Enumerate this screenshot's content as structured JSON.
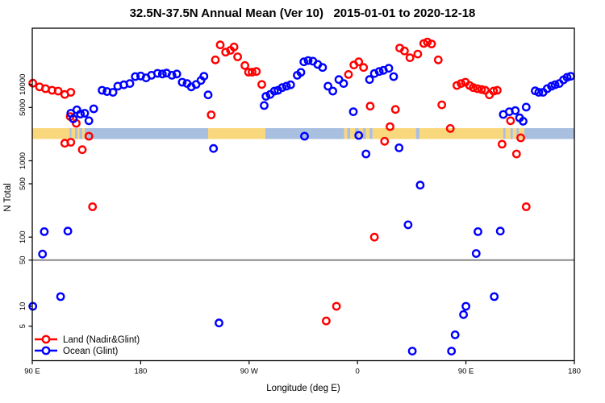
{
  "title": "32.5N-37.5N Annual Mean (Ver 10)   2015-01-01 to 2020-12-18",
  "axes": {
    "x": {
      "label": "Longitude (deg E)",
      "range": [
        90,
        540
      ],
      "ticks": [
        {
          "lon": 90,
          "label": "90 E"
        },
        {
          "lon": 180,
          "label": "180"
        },
        {
          "lon": 270,
          "label": "90 W"
        },
        {
          "lon": 360,
          "label": "0"
        },
        {
          "lon": 450,
          "label": "90 E"
        },
        {
          "lon": 540,
          "label": "180"
        }
      ]
    },
    "y": {
      "label": "N Total",
      "scale": "log-split",
      "split_value": 50,
      "ticks": [
        {
          "v": 10000,
          "label": "10000"
        },
        {
          "v": 5000,
          "label": "5000"
        },
        {
          "v": 1000,
          "label": "1000"
        },
        {
          "v": 500,
          "label": "500"
        },
        {
          "v": 100,
          "label": "100"
        },
        {
          "v": 50,
          "label": "50"
        },
        {
          "v": 10,
          "label": "10"
        },
        {
          "v": 5,
          "label": "5"
        }
      ]
    }
  },
  "colors": {
    "land": "#ff0000",
    "ocean": "#0000ff",
    "band_land": "#f9d77c",
    "band_ocean": "#a9bfe0",
    "split_line": "#7f7f7f",
    "frame": "#000000"
  },
  "legend": {
    "land_label": "Land (Nadir&Glint)",
    "ocean_label": "Ocean (Glint)"
  },
  "land_ocean_strip": {
    "description": "land/ocean map strip across the latitude band",
    "segments": [
      {
        "type": "land",
        "from": 90,
        "to": 121
      },
      {
        "type": "ocean",
        "from": 121,
        "to": 122.5
      },
      {
        "type": "land",
        "from": 122.5,
        "to": 125.5
      },
      {
        "type": "ocean",
        "from": 125.5,
        "to": 127.5
      },
      {
        "type": "land",
        "from": 127.5,
        "to": 129
      },
      {
        "type": "ocean",
        "from": 129,
        "to": 131.5
      },
      {
        "type": "land",
        "from": 131.5,
        "to": 133.5
      },
      {
        "type": "ocean",
        "from": 133.5,
        "to": 236
      },
      {
        "type": "land",
        "from": 236,
        "to": 283.5
      },
      {
        "type": "ocean",
        "from": 283.5,
        "to": 349
      },
      {
        "type": "land",
        "from": 349,
        "to": 351.5
      },
      {
        "type": "ocean",
        "from": 351.5,
        "to": 354
      },
      {
        "type": "land",
        "from": 354,
        "to": 358
      },
      {
        "type": "ocean",
        "from": 358,
        "to": 361
      },
      {
        "type": "land",
        "from": 361,
        "to": 364.5
      },
      {
        "type": "ocean",
        "from": 364.5,
        "to": 367
      },
      {
        "type": "land",
        "from": 367,
        "to": 370
      },
      {
        "type": "ocean",
        "from": 370,
        "to": 372.5
      },
      {
        "type": "land",
        "from": 372.5,
        "to": 408.5
      },
      {
        "type": "ocean",
        "from": 408.5,
        "to": 411.5
      },
      {
        "type": "land",
        "from": 411.5,
        "to": 481
      },
      {
        "type": "ocean",
        "from": 481,
        "to": 483
      },
      {
        "type": "land",
        "from": 483,
        "to": 487
      },
      {
        "type": "ocean",
        "from": 487,
        "to": 489
      },
      {
        "type": "land",
        "from": 489,
        "to": 492
      },
      {
        "type": "ocean",
        "from": 492,
        "to": 494
      },
      {
        "type": "land",
        "from": 494,
        "to": 498.5
      },
      {
        "type": "ocean",
        "from": 498.5,
        "to": 540
      }
    ]
  },
  "chart_data": {
    "type": "scatter",
    "title": "32.5N-37.5N Annual Mean (Ver 10)   2015-01-01 to 2020-12-18",
    "xlabel": "Longitude (deg E)",
    "ylabel": "N Total",
    "xlim": [
      90,
      540
    ],
    "x_note": "longitude in deg E, wrapping 90E->180->90W->0->90E->180",
    "y_note": "log scale, split axis at N=50",
    "grid": "single horizontal gray line at N=50",
    "legend_position": "bottom-left inside plot",
    "series": [
      {
        "name": "Land (Nadir&Glint)",
        "color": "#ff0000",
        "points": [
          [
            90.5,
            10400
          ],
          [
            96,
            9300
          ],
          [
            101,
            8800
          ],
          [
            106.5,
            8400
          ],
          [
            111.5,
            8200
          ],
          [
            117,
            7400
          ],
          [
            122,
            7900
          ],
          [
            121.5,
            3800
          ],
          [
            126.5,
            3100
          ],
          [
            117,
            1700
          ],
          [
            122,
            1750
          ],
          [
            131.5,
            1400
          ],
          [
            137,
            2100
          ],
          [
            140,
            250
          ],
          [
            238.5,
            4000
          ],
          [
            242,
            21000
          ],
          [
            246,
            33000
          ],
          [
            250.5,
            26500
          ],
          [
            254.5,
            28000
          ],
          [
            257.5,
            31000
          ],
          [
            260.5,
            23000
          ],
          [
            266.5,
            17700
          ],
          [
            269.5,
            14500
          ],
          [
            272.5,
            14500
          ],
          [
            276,
            14800
          ],
          [
            280.5,
            10000
          ],
          [
            352.5,
            13500
          ],
          [
            357,
            18000
          ],
          [
            361,
            19800
          ],
          [
            365,
            16700
          ],
          [
            370.5,
            5200
          ],
          [
            382.5,
            1800
          ],
          [
            387,
            2800
          ],
          [
            391.5,
            4700
          ],
          [
            374,
            100
          ],
          [
            342.5,
            10
          ],
          [
            334,
            6
          ],
          [
            395,
            30000
          ],
          [
            399,
            27500
          ],
          [
            403.5,
            22400
          ],
          [
            410,
            25000
          ],
          [
            415,
            34500
          ],
          [
            418,
            36000
          ],
          [
            421.5,
            34000
          ],
          [
            427,
            21000
          ],
          [
            430,
            5400
          ],
          [
            437,
            2650
          ],
          [
            442.5,
            9700
          ],
          [
            446,
            10300
          ],
          [
            449.5,
            10700
          ],
          [
            453,
            9700
          ],
          [
            456,
            9100
          ],
          [
            459.5,
            8800
          ],
          [
            463,
            8600
          ],
          [
            466,
            8400
          ],
          [
            469.5,
            7300
          ],
          [
            473,
            8200
          ],
          [
            476,
            8400
          ],
          [
            487,
            3350
          ],
          [
            480,
            1650
          ],
          [
            495.5,
            2000
          ],
          [
            492,
            1230
          ],
          [
            500,
            250
          ]
        ]
      },
      {
        "name": "Ocean (Glint)",
        "color": "#0000ff",
        "points": [
          [
            122,
            4200
          ],
          [
            124,
            3550
          ],
          [
            127,
            4650
          ],
          [
            130,
            4100
          ],
          [
            133.5,
            4200
          ],
          [
            137,
            3350
          ],
          [
            141,
            4800
          ],
          [
            148,
            8400
          ],
          [
            152,
            8100
          ],
          [
            157,
            7900
          ],
          [
            161,
            9500
          ],
          [
            166,
            9900
          ],
          [
            171,
            10300
          ],
          [
            175.5,
            12700
          ],
          [
            180,
            12900
          ],
          [
            184.5,
            12200
          ],
          [
            189,
            13200
          ],
          [
            194,
            14000
          ],
          [
            198,
            13700
          ],
          [
            201.5,
            14100
          ],
          [
            206,
            13200
          ],
          [
            210,
            13700
          ],
          [
            214.5,
            10700
          ],
          [
            218.5,
            10300
          ],
          [
            222,
            9300
          ],
          [
            226,
            10000
          ],
          [
            230,
            11300
          ],
          [
            232.5,
            12800
          ],
          [
            236,
            7300
          ],
          [
            282.5,
            5300
          ],
          [
            284,
            7000
          ],
          [
            287.5,
            7400
          ],
          [
            291,
            8200
          ],
          [
            294,
            8400
          ],
          [
            297.5,
            9100
          ],
          [
            301,
            9500
          ],
          [
            304.5,
            9900
          ],
          [
            310,
            13200
          ],
          [
            313,
            14400
          ],
          [
            315.5,
            19800
          ],
          [
            319,
            20600
          ],
          [
            323,
            20200
          ],
          [
            327,
            18300
          ],
          [
            331,
            16700
          ],
          [
            335.5,
            9500
          ],
          [
            339.5,
            8200
          ],
          [
            344.5,
            11600
          ],
          [
            348.5,
            10300
          ],
          [
            316,
            2100
          ],
          [
            356.5,
            4400
          ],
          [
            361,
            2150
          ],
          [
            367,
            1230
          ],
          [
            394.5,
            1480
          ],
          [
            412,
            480
          ],
          [
            402,
            145
          ],
          [
            405.5,
            2.1
          ],
          [
            370,
            11600
          ],
          [
            374,
            13900
          ],
          [
            378,
            14800
          ],
          [
            381.5,
            15300
          ],
          [
            386,
            16300
          ],
          [
            390,
            12700
          ],
          [
            481,
            4050
          ],
          [
            486,
            4400
          ],
          [
            491,
            4550
          ],
          [
            500,
            5050
          ],
          [
            494.5,
            3650
          ],
          [
            497.5,
            3300
          ],
          [
            507.5,
            8250
          ],
          [
            510.5,
            7900
          ],
          [
            514,
            7900
          ],
          [
            517.5,
            8800
          ],
          [
            521,
            9500
          ],
          [
            524,
            9900
          ],
          [
            527.5,
            10300
          ],
          [
            531,
            11500
          ],
          [
            534,
            12400
          ],
          [
            537,
            12800
          ],
          [
            240.5,
            1450
          ],
          [
            245,
            5.6
          ],
          [
            100,
            118
          ],
          [
            119.5,
            120
          ],
          [
            98.5,
            60
          ],
          [
            113.5,
            14
          ],
          [
            90.5,
            10
          ],
          [
            460,
            118
          ],
          [
            478.5,
            120
          ],
          [
            458.5,
            61
          ],
          [
            473.5,
            14
          ],
          [
            450,
            10
          ],
          [
            448,
            7.5
          ],
          [
            441,
            3.7
          ],
          [
            438,
            2.1
          ]
        ]
      }
    ]
  }
}
